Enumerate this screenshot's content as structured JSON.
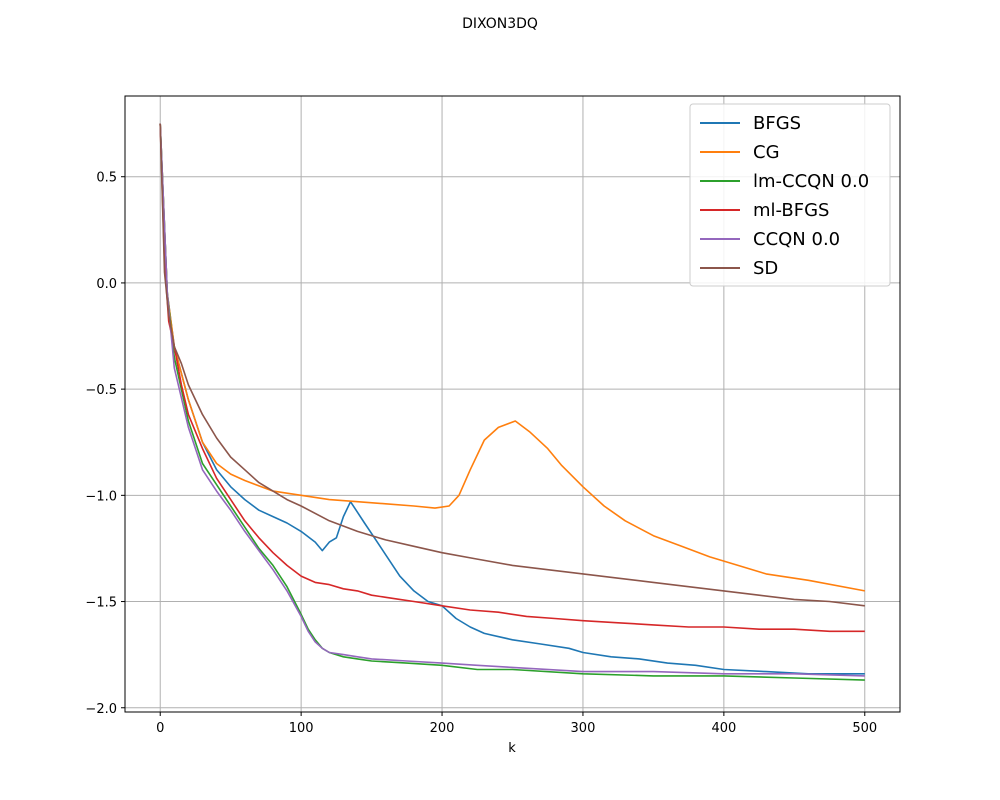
{
  "chart_data": {
    "type": "line",
    "title": "DIXON3DQ",
    "xlabel": "k",
    "ylabel": "",
    "xlim": [
      -25,
      525
    ],
    "ylim": [
      -2.02,
      0.88
    ],
    "xticks": [
      0,
      100,
      200,
      300,
      400,
      500
    ],
    "xtick_labels": [
      "0",
      "100",
      "200",
      "300",
      "400",
      "500"
    ],
    "yticks": [
      0.5,
      0.0,
      -0.5,
      -1.0,
      -1.5,
      -2.0
    ],
    "ytick_labels": [
      "0.5",
      "0.0",
      "−0.5",
      "−1.0",
      "−1.5",
      "−2.0"
    ],
    "grid": true,
    "legend_position": "top-right",
    "series": [
      {
        "name": "BFGS",
        "color": "#1f77b4",
        "x": [
          0,
          5,
          10,
          20,
          30,
          40,
          50,
          60,
          70,
          80,
          90,
          100,
          110,
          115,
          120,
          125,
          130,
          135,
          140,
          145,
          150,
          160,
          170,
          180,
          190,
          200,
          210,
          220,
          230,
          250,
          270,
          290,
          300,
          320,
          340,
          360,
          380,
          400,
          430,
          460,
          500
        ],
        "y": [
          0.75,
          -0.05,
          -0.3,
          -0.55,
          -0.75,
          -0.88,
          -0.96,
          -1.02,
          -1.07,
          -1.1,
          -1.13,
          -1.17,
          -1.22,
          -1.26,
          -1.22,
          -1.2,
          -1.1,
          -1.03,
          -1.08,
          -1.13,
          -1.18,
          -1.28,
          -1.38,
          -1.45,
          -1.5,
          -1.52,
          -1.58,
          -1.62,
          -1.65,
          -1.68,
          -1.7,
          -1.72,
          -1.74,
          -1.76,
          -1.77,
          -1.79,
          -1.8,
          -1.82,
          -1.83,
          -1.84,
          -1.84
        ]
      },
      {
        "name": "CG",
        "color": "#ff7f0e",
        "x": [
          0,
          5,
          10,
          20,
          30,
          40,
          50,
          60,
          80,
          100,
          120,
          140,
          160,
          180,
          195,
          205,
          212,
          220,
          230,
          240,
          252,
          262,
          275,
          285,
          300,
          315,
          330,
          350,
          370,
          390,
          410,
          430,
          460,
          500
        ],
        "y": [
          0.75,
          -0.05,
          -0.3,
          -0.55,
          -0.75,
          -0.85,
          -0.9,
          -0.93,
          -0.98,
          -1.0,
          -1.02,
          -1.03,
          -1.04,
          -1.05,
          -1.06,
          -1.05,
          -1.0,
          -0.88,
          -0.74,
          -0.68,
          -0.65,
          -0.7,
          -0.78,
          -0.86,
          -0.96,
          -1.05,
          -1.12,
          -1.19,
          -1.24,
          -1.29,
          -1.33,
          -1.37,
          -1.4,
          -1.45
        ]
      },
      {
        "name": "lm-CCQN 0.0",
        "color": "#2ca02c",
        "x": [
          0,
          5,
          10,
          20,
          30,
          40,
          50,
          60,
          70,
          80,
          90,
          100,
          105,
          110,
          115,
          120,
          130,
          140,
          150,
          175,
          200,
          225,
          250,
          300,
          350,
          400,
          450,
          500
        ],
        "y": [
          0.75,
          -0.05,
          -0.35,
          -0.65,
          -0.85,
          -0.95,
          -1.05,
          -1.15,
          -1.25,
          -1.33,
          -1.43,
          -1.56,
          -1.63,
          -1.68,
          -1.72,
          -1.74,
          -1.76,
          -1.77,
          -1.78,
          -1.79,
          -1.8,
          -1.82,
          -1.82,
          -1.84,
          -1.85,
          -1.85,
          -1.86,
          -1.87
        ]
      },
      {
        "name": "ml-BFGS",
        "color": "#d62728",
        "x": [
          0,
          3,
          6,
          10,
          15,
          20,
          30,
          40,
          50,
          60,
          70,
          80,
          90,
          100,
          110,
          120,
          130,
          140,
          150,
          160,
          170,
          180,
          200,
          220,
          240,
          260,
          280,
          300,
          325,
          350,
          375,
          400,
          425,
          450,
          475,
          500
        ],
        "y": [
          0.75,
          0.1,
          -0.18,
          -0.3,
          -0.48,
          -0.62,
          -0.78,
          -0.92,
          -1.02,
          -1.12,
          -1.2,
          -1.27,
          -1.33,
          -1.38,
          -1.41,
          -1.42,
          -1.44,
          -1.45,
          -1.47,
          -1.48,
          -1.49,
          -1.5,
          -1.52,
          -1.54,
          -1.55,
          -1.57,
          -1.58,
          -1.59,
          -1.6,
          -1.61,
          -1.62,
          -1.62,
          -1.63,
          -1.63,
          -1.64,
          -1.64
        ]
      },
      {
        "name": "CCQN 0.0",
        "color": "#9467bd",
        "x": [
          0,
          5,
          10,
          20,
          30,
          40,
          50,
          60,
          70,
          80,
          90,
          100,
          105,
          110,
          115,
          120,
          130,
          140,
          150,
          175,
          200,
          225,
          250,
          300,
          350,
          400,
          450,
          500
        ],
        "y": [
          0.75,
          -0.05,
          -0.4,
          -0.68,
          -0.88,
          -0.98,
          -1.07,
          -1.17,
          -1.26,
          -1.35,
          -1.45,
          -1.57,
          -1.64,
          -1.69,
          -1.72,
          -1.74,
          -1.75,
          -1.76,
          -1.77,
          -1.78,
          -1.79,
          -1.8,
          -1.81,
          -1.83,
          -1.83,
          -1.84,
          -1.84,
          -1.85
        ]
      },
      {
        "name": "SD",
        "color": "#8c564b",
        "x": [
          0,
          3,
          6,
          10,
          15,
          20,
          30,
          40,
          50,
          60,
          70,
          80,
          90,
          100,
          120,
          140,
          160,
          180,
          200,
          225,
          250,
          275,
          300,
          325,
          350,
          375,
          400,
          425,
          450,
          475,
          500
        ],
        "y": [
          0.75,
          0.05,
          -0.15,
          -0.3,
          -0.38,
          -0.48,
          -0.62,
          -0.73,
          -0.82,
          -0.88,
          -0.94,
          -0.98,
          -1.02,
          -1.05,
          -1.12,
          -1.17,
          -1.21,
          -1.24,
          -1.27,
          -1.3,
          -1.33,
          -1.35,
          -1.37,
          -1.39,
          -1.41,
          -1.43,
          -1.45,
          -1.47,
          -1.49,
          -1.5,
          -1.52
        ]
      }
    ]
  }
}
